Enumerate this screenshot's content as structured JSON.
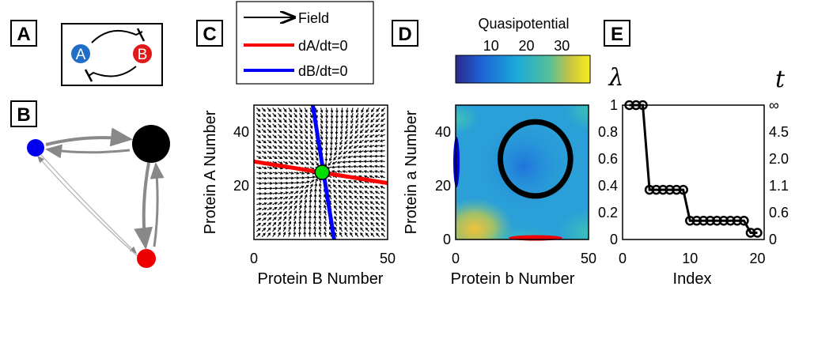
{
  "panels": {
    "A": {
      "label": "A",
      "node_a": "A",
      "node_b": "B",
      "colors": {
        "node_a": "#1f6fc6",
        "node_b": "#e01a1a"
      }
    },
    "B": {
      "label": "B",
      "nodes": [
        {
          "color": "#0000ee",
          "size": "small"
        },
        {
          "color": "#000000",
          "size": "large"
        },
        {
          "color": "#ee0000",
          "size": "small"
        }
      ]
    },
    "C": {
      "label": "C",
      "legend": {
        "field": "Field",
        "dA": "dA/dt=0",
        "dB": "dB/dt=0"
      },
      "colors": {
        "dA": "#ff0000",
        "dB": "#0000ff",
        "fixed_point": "#00dd00"
      }
    },
    "D": {
      "label": "D",
      "colorbar_title": "Quasipotential",
      "colorbar_ticks": [
        "10",
        "20",
        "30"
      ],
      "colors": {
        "ring": "#000000",
        "blue_attractor": "#0000dd",
        "red_attractor": "#ee0000"
      }
    },
    "E": {
      "label": "E",
      "left_symbol": "λ",
      "right_symbol": "t",
      "right_ticks": [
        "∞",
        "4.5",
        "2.0",
        "1.1",
        "0.6",
        "0"
      ]
    }
  },
  "chart_data": [
    {
      "type": "scatter",
      "panel": "C",
      "xlabel": "Protein B Number",
      "ylabel": "Protein A Number",
      "xlim": [
        0,
        50
      ],
      "ylim": [
        0,
        50
      ],
      "xticks": [
        "0",
        "50"
      ],
      "yticks": [
        "20",
        "40"
      ],
      "series": [
        {
          "name": "dA/dt=0",
          "x": [
            0,
            50
          ],
          "y": [
            29,
            21
          ]
        },
        {
          "name": "dB/dt=0",
          "x": [
            22,
            30
          ],
          "y": [
            50,
            0
          ]
        }
      ],
      "fixed_point": {
        "x": 25.5,
        "y": 25
      }
    },
    {
      "type": "heatmap",
      "panel": "D",
      "xlabel": "Protein b Number",
      "ylabel": "Protein a Number",
      "xlim": [
        0,
        50
      ],
      "ylim": [
        0,
        50
      ],
      "xticks": [
        "0",
        "50"
      ],
      "yticks": [
        "0",
        "20",
        "40"
      ],
      "colorbar_range": [
        0,
        38
      ],
      "ring": {
        "cx": 30,
        "cy": 30,
        "r": 12
      }
    },
    {
      "type": "line",
      "panel": "E",
      "xlabel": "Index",
      "ylim": [
        0,
        1
      ],
      "xlim": [
        0,
        21
      ],
      "xticks": [
        "0",
        "10",
        "20"
      ],
      "yticks": [
        "0",
        "0.2",
        "0.4",
        "0.6",
        "0.8",
        "1"
      ],
      "x": [
        1,
        2,
        3,
        4,
        5,
        6,
        7,
        8,
        9,
        10,
        11,
        12,
        13,
        14,
        15,
        16,
        17,
        18,
        19,
        20
      ],
      "values": [
        1,
        1,
        1,
        0.37,
        0.37,
        0.37,
        0.37,
        0.37,
        0.37,
        0.14,
        0.14,
        0.14,
        0.14,
        0.14,
        0.14,
        0.14,
        0.14,
        0.14,
        0.05,
        0.05
      ]
    }
  ]
}
